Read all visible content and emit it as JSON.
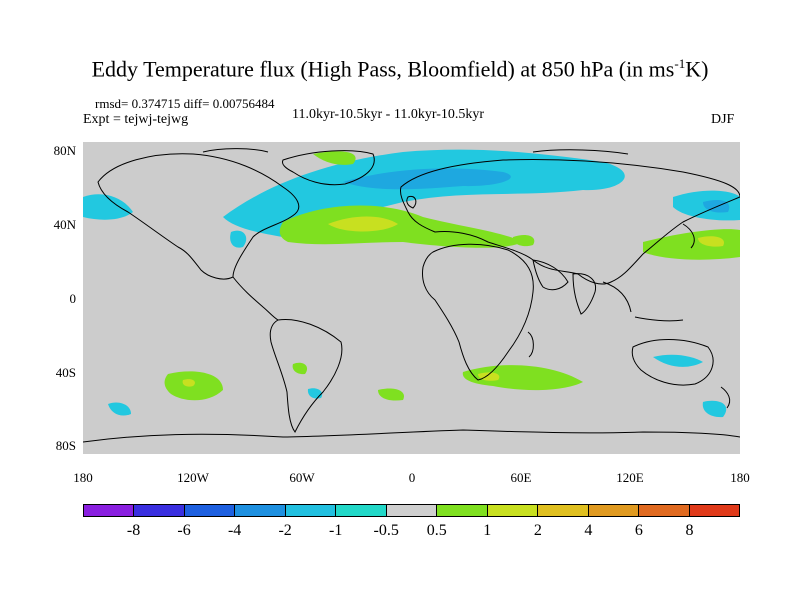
{
  "title": {
    "main": "Eddy Temperature flux (High Pass, Bloomfield) at 850 hPa (in ms",
    "sup": "-1",
    "tail": "K)"
  },
  "stats": "rmsd= 0.374715 diff= 0.00756484",
  "experiment": "Expt = tejwj-tejwg",
  "period": "11.0kyr-10.5kyr - 11.0kyr-10.5kyr",
  "season": "DJF",
  "y_ticks": [
    "80N",
    "40N",
    "0",
    "40S",
    "80S"
  ],
  "x_ticks": [
    "180",
    "120W",
    "60W",
    "0",
    "60E",
    "120E",
    "180"
  ],
  "colorbar": {
    "colors": [
      "#8a1fe0",
      "#3a2fe0",
      "#1e60e0",
      "#1e90e0",
      "#22c0e0",
      "#22d8c8",
      "#cfcfcf",
      "#7fe020",
      "#c8e020",
      "#e0c020",
      "#e09a20",
      "#e06a20",
      "#e03a1a"
    ],
    "labels": [
      "-8",
      "-6",
      "-4",
      "-2",
      "-1",
      "-0.5",
      "0.5",
      "1",
      "2",
      "4",
      "6",
      "8"
    ]
  },
  "map_colors": {
    "land_background": "#cccccc",
    "blue": "#22c8e0",
    "blue_dark": "#1ea8e0",
    "green": "#7fe020",
    "yellow": "#c8e020"
  }
}
